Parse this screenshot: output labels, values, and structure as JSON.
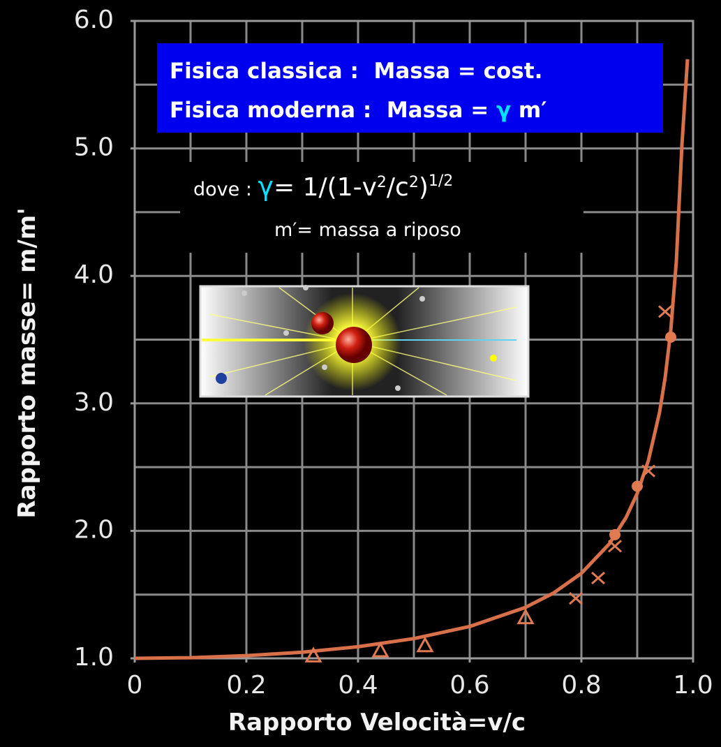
{
  "chart_data": {
    "type": "line",
    "x_label": "Rapporto Velocità=v/c",
    "y_label": "Rapporto masse= m/m'",
    "xlim": [
      0,
      1
    ],
    "ylim": [
      1,
      6
    ],
    "xticks": [
      0,
      0.2,
      0.4,
      0.6,
      0.8,
      {
        "value": 1,
        "label": "1.0"
      }
    ],
    "yticks": [
      {
        "value": 1,
        "label": "1.0"
      },
      {
        "value": 2,
        "label": "2.0"
      },
      {
        "value": 3,
        "label": "3.0"
      },
      {
        "value": 4,
        "label": "4.0"
      },
      {
        "value": 5,
        "label": "5.0"
      },
      {
        "value": 6,
        "label": "6.0"
      }
    ],
    "xgrid": [
      0,
      0.1,
      0.2,
      0.3,
      0.4,
      0.5,
      0.6,
      0.7,
      0.8,
      0.9,
      1
    ],
    "ygrid": [
      1,
      1.5,
      2,
      2.5,
      3,
      3.5,
      4,
      4.5,
      5,
      5.5,
      6
    ],
    "grid": true,
    "annotations": {
      "classica": "Fisica classica :  Massa = cost.",
      "moderna": [
        "Fisica moderna :  Massa = ",
        "γ",
        " m′"
      ],
      "formula": [
        "dove : ",
        "γ",
        "= 1/(1-v",
        "2",
        "/c",
        "2",
        ")",
        "1/2"
      ],
      "riposo": "m′= massa a riposo"
    },
    "series": [
      {
        "type": "line",
        "color": "#d8704a",
        "x": [
          0,
          0.1,
          0.2,
          0.3,
          0.4,
          0.5,
          0.6,
          0.7,
          0.75,
          0.8,
          0.85,
          0.88,
          0.9,
          0.92,
          0.94,
          0.95,
          0.96,
          0.97,
          0.98,
          0.99
        ],
        "values": [
          1,
          1.005,
          1.021,
          1.048,
          1.091,
          1.155,
          1.25,
          1.4,
          1.512,
          1.667,
          1.898,
          2.105,
          2.294,
          2.552,
          2.931,
          3.203,
          3.571,
          4.113,
          5.025,
          5.7
        ]
      },
      {
        "type": "scatter",
        "marker": "triangle",
        "color": "#e07a50",
        "x": [
          0.32,
          0.44,
          0.52,
          0.7
        ],
        "values": [
          1.02,
          1.06,
          1.1,
          1.32
        ]
      },
      {
        "type": "scatter",
        "marker": "cross",
        "color": "#e07a50",
        "x": [
          0.79,
          0.83,
          0.86,
          0.92,
          0.95
        ],
        "values": [
          1.47,
          1.63,
          1.88,
          2.47,
          3.72
        ]
      },
      {
        "type": "scatter",
        "marker": "circle",
        "color": "#e07a50",
        "x": [
          0.86,
          0.9,
          0.96
        ],
        "values": [
          1.97,
          2.35,
          3.52
        ]
      }
    ]
  }
}
